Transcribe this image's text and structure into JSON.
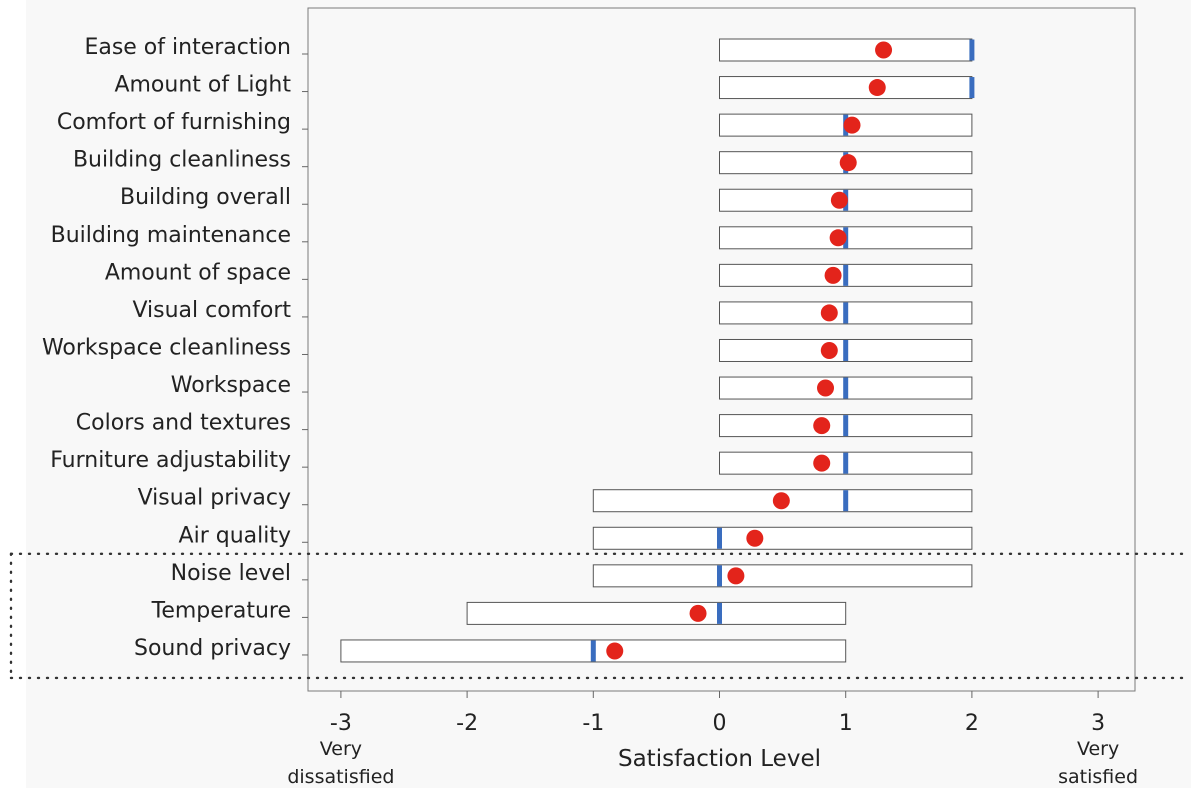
{
  "chart_data": {
    "type": "range-dot",
    "title": "",
    "xlabel": "Satisfaction Level",
    "ylabel": "",
    "xlim": [
      -3.25,
      3.3
    ],
    "xticks": [
      -3,
      -2,
      -1,
      0,
      1,
      2,
      3
    ],
    "xtick_labels": [
      "-3",
      "-2",
      "-1",
      "0",
      "1",
      "2",
      "3"
    ],
    "end_labels": {
      "left": [
        "Very",
        "dissatisfied"
      ],
      "right": [
        "Very",
        "satisfied"
      ]
    },
    "grid": false,
    "legend": "none",
    "categories": [
      "Ease of interaction",
      "Amount of Light",
      "Comfort of furnishing",
      "Building cleanliness",
      "Building overall",
      "Building maintenance",
      "Amount of space",
      "Visual comfort",
      "Workspace cleanliness",
      "Workspace",
      "Colors and textures",
      "Furniture adjustability",
      "Visual privacy",
      "Air quality",
      "Noise level",
      "Temperature",
      "Sound privacy"
    ],
    "ranges": [
      [
        0,
        2
      ],
      [
        0,
        2
      ],
      [
        0,
        2
      ],
      [
        0,
        2
      ],
      [
        0,
        2
      ],
      [
        0,
        2
      ],
      [
        0,
        2
      ],
      [
        0,
        2
      ],
      [
        0,
        2
      ],
      [
        0,
        2
      ],
      [
        0,
        2
      ],
      [
        0,
        2
      ],
      [
        -1,
        2
      ],
      [
        -1,
        2
      ],
      [
        -1,
        2
      ],
      [
        -2,
        1
      ],
      [
        -3,
        1
      ]
    ],
    "medians": [
      2,
      2,
      1,
      1,
      1,
      1,
      1,
      1,
      1,
      1,
      1,
      1,
      1,
      0,
      0,
      0,
      -1
    ],
    "means": [
      1.3,
      1.25,
      1.05,
      1.02,
      0.95,
      0.94,
      0.9,
      0.87,
      0.87,
      0.84,
      0.81,
      0.81,
      0.49,
      0.28,
      0.13,
      -0.17,
      -0.83
    ],
    "highlight": {
      "style": "dotted-box",
      "categories": [
        "Noise level",
        "Temperature",
        "Sound privacy"
      ]
    },
    "colors": {
      "mean_dot": "#e3241b",
      "median_bar": "#3a6dbf",
      "range_fill": "#ffffff",
      "range_stroke": "#555555",
      "plot_background": "#f8f8f8",
      "highlight_dots": "#333333"
    }
  }
}
